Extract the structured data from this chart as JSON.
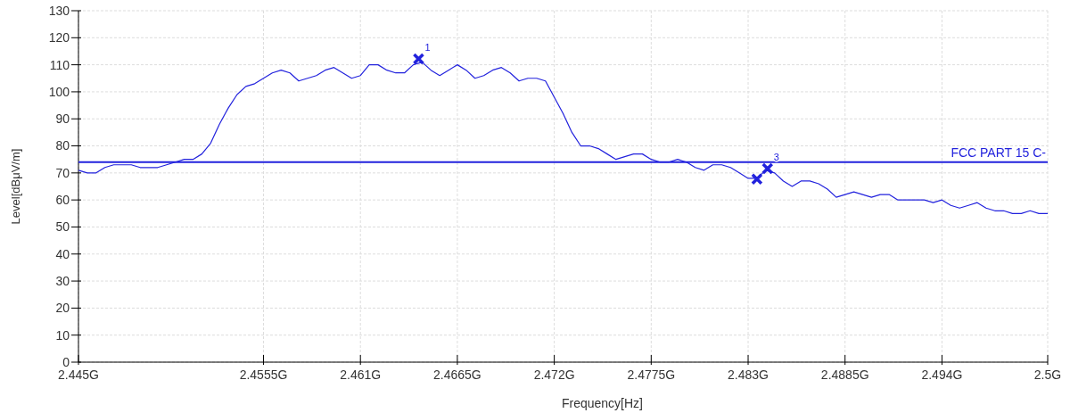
{
  "chart_data": {
    "type": "line",
    "xlabel": "Frequency[Hz]",
    "ylabel": "Level[dBμV/m]",
    "xlim": [
      2.445,
      2.5
    ],
    "ylim": [
      0,
      130
    ],
    "xticks": [
      {
        "value": 2.445,
        "label": "2.445G"
      },
      {
        "value": 2.4555,
        "label": "2.4555G"
      },
      {
        "value": 2.461,
        "label": "2.461G"
      },
      {
        "value": 2.4665,
        "label": "2.4665G"
      },
      {
        "value": 2.472,
        "label": "2.472G"
      },
      {
        "value": 2.4775,
        "label": "2.4775G"
      },
      {
        "value": 2.483,
        "label": "2.483G"
      },
      {
        "value": 2.4885,
        "label": "2.4885G"
      },
      {
        "value": 2.494,
        "label": "2.494G"
      },
      {
        "value": 2.5,
        "label": "2.5G"
      }
    ],
    "yticks": [
      0,
      10,
      20,
      30,
      40,
      50,
      60,
      70,
      80,
      90,
      100,
      110,
      120,
      130
    ],
    "grid": true,
    "line_style": "solid",
    "x": [
      2.445,
      2.4455,
      2.446,
      2.4465,
      2.447,
      2.4475,
      2.448,
      2.4485,
      2.449,
      2.4495,
      2.45,
      2.4505,
      2.451,
      2.4515,
      2.452,
      2.4525,
      2.453,
      2.4535,
      2.454,
      2.4545,
      2.455,
      2.4555,
      2.456,
      2.4565,
      2.457,
      2.4575,
      2.458,
      2.4585,
      2.459,
      2.4595,
      2.46,
      2.4605,
      2.461,
      2.4615,
      2.462,
      2.4625,
      2.463,
      2.4635,
      2.464,
      2.4645,
      2.465,
      2.4655,
      2.466,
      2.4665,
      2.467,
      2.4675,
      2.468,
      2.4685,
      2.469,
      2.4695,
      2.47,
      2.4705,
      2.471,
      2.4715,
      2.472,
      2.4725,
      2.473,
      2.4735,
      2.474,
      2.4745,
      2.475,
      2.4755,
      2.476,
      2.4765,
      2.477,
      2.4775,
      2.478,
      2.4785,
      2.479,
      2.4795,
      2.48,
      2.4805,
      2.481,
      2.4815,
      2.482,
      2.4825,
      2.483,
      2.4835,
      2.484,
      2.4845,
      2.485,
      2.4855,
      2.486,
      2.4865,
      2.487,
      2.4875,
      2.488,
      2.4885,
      2.489,
      2.4895,
      2.49,
      2.4905,
      2.491,
      2.4915,
      2.492,
      2.4925,
      2.493,
      2.4935,
      2.494,
      2.4945,
      2.495,
      2.4955,
      2.496,
      2.4965,
      2.497,
      2.4975,
      2.498,
      2.4985,
      2.499,
      2.4995,
      2.5
    ],
    "series": [
      {
        "marker": "none",
        "color": "#2222dd",
        "values": [
          71,
          70,
          70,
          72,
          73,
          73,
          73,
          72,
          72,
          72,
          73,
          74,
          75,
          75,
          77,
          81,
          88,
          94,
          99,
          102,
          103,
          105,
          107,
          108,
          107,
          104,
          105,
          106,
          108,
          109,
          107,
          105,
          106,
          110,
          110,
          108,
          107,
          107,
          110,
          111,
          108,
          106,
          108,
          110,
          108,
          105,
          106,
          108,
          109,
          107,
          104,
          105,
          105,
          104,
          98,
          92,
          85,
          80,
          80,
          79,
          77,
          75,
          76,
          77,
          77,
          75,
          74,
          74,
          75,
          74,
          72,
          71,
          73,
          73,
          72,
          70,
          68,
          68,
          71,
          70,
          67,
          65,
          67,
          67,
          66,
          64,
          61,
          62,
          63,
          62,
          61,
          62,
          62,
          60,
          60,
          60,
          60,
          59,
          60,
          58,
          57,
          58,
          59,
          57,
          56,
          56,
          55,
          55,
          56,
          55,
          55
        ]
      },
      {
        "type": "scatter",
        "marker": "cross",
        "color": "#2222dd",
        "x": [
          2.4643,
          2.4835,
          2.4841
        ],
        "values": [
          112.2,
          67.7,
          71.6
        ]
      }
    ],
    "ref_lines": [
      {
        "axis": "y",
        "value": 74,
        "label": "FCC PART 15 C-",
        "color": "#2222dd",
        "line_style": "solid"
      }
    ],
    "annotations": [
      {
        "text": "1",
        "x": 2.4643,
        "y": 112.2
      },
      {
        "text": "3",
        "x": 2.4841,
        "y": 71.6
      }
    ]
  }
}
